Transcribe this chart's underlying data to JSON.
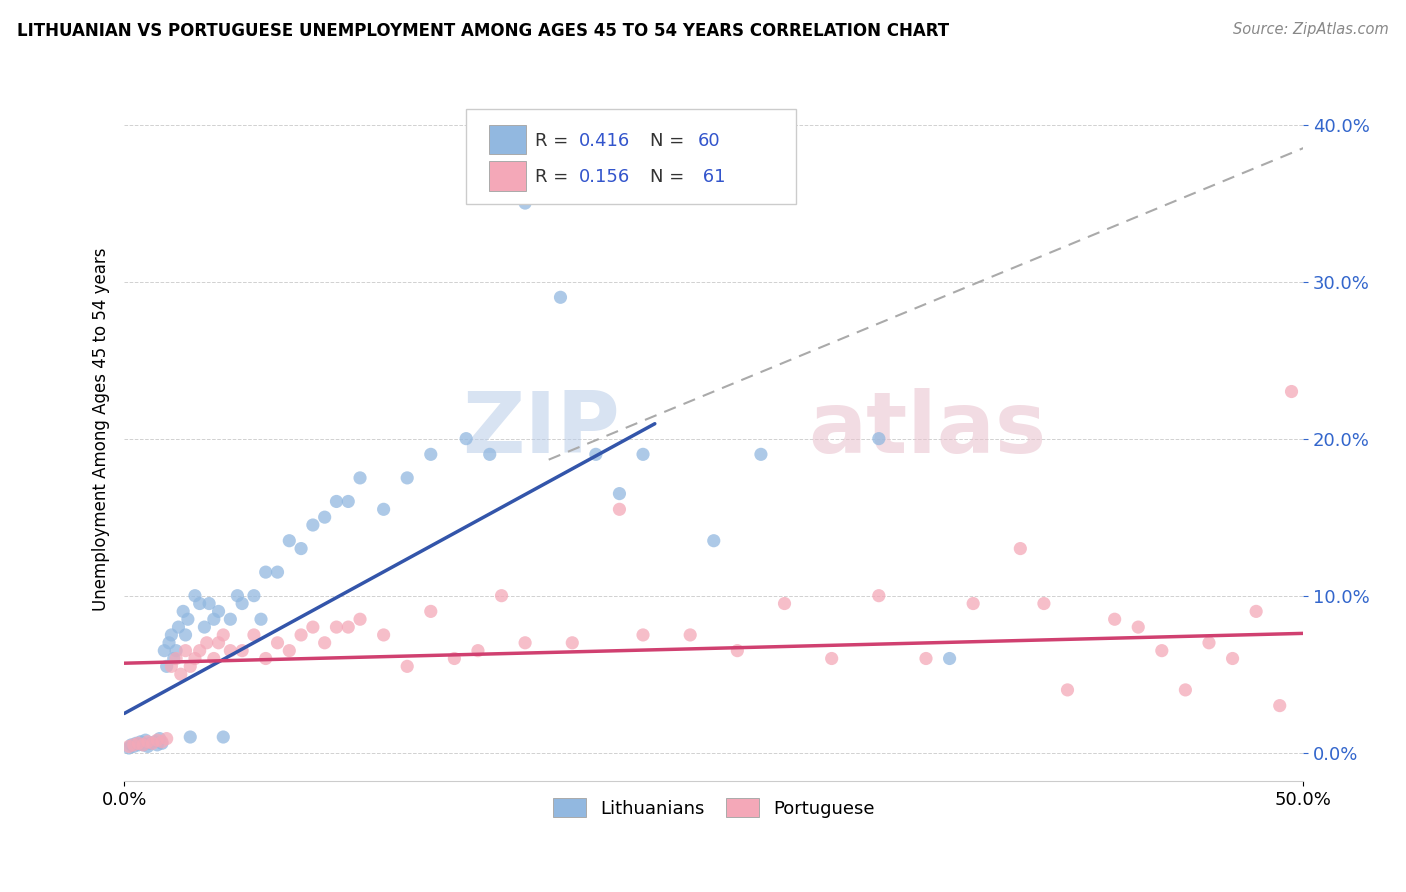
{
  "title": "LITHUANIAN VS PORTUGUESE UNEMPLOYMENT AMONG AGES 45 TO 54 YEARS CORRELATION CHART",
  "source": "Source: ZipAtlas.com",
  "ylabel": "Unemployment Among Ages 45 to 54 years",
  "yticks": [
    "0.0%",
    "10.0%",
    "20.0%",
    "30.0%",
    "40.0%"
  ],
  "ytick_vals": [
    0.0,
    0.1,
    0.2,
    0.3,
    0.4
  ],
  "xrange": [
    0.0,
    0.5
  ],
  "yrange": [
    -0.018,
    0.43
  ],
  "lit_color": "#92b8e0",
  "por_color": "#f4a8b8",
  "lit_line_color": "#3355aa",
  "por_line_color": "#d04070",
  "dashed_line_color": "#aaaaaa",
  "watermark_zip": "ZIP",
  "watermark_atlas": "atlas",
  "lit_R": "0.416",
  "lit_N": "60",
  "por_R": "0.156",
  "por_N": "61",
  "lit_slope": 0.82,
  "lit_intercept": 0.025,
  "lit_xstart": 0.0,
  "lit_xend": 0.225,
  "por_slope": 0.038,
  "por_intercept": 0.057,
  "por_xstart": 0.0,
  "por_xend": 0.5,
  "dash_slope": 0.62,
  "dash_intercept": 0.075,
  "dash_xstart": 0.18,
  "dash_xend": 0.5,
  "lit_scatter_x": [
    0.002,
    0.003,
    0.004,
    0.005,
    0.006,
    0.007,
    0.008,
    0.009,
    0.01,
    0.011,
    0.013,
    0.014,
    0.015,
    0.016,
    0.017,
    0.018,
    0.019,
    0.02,
    0.021,
    0.022,
    0.023,
    0.025,
    0.026,
    0.027,
    0.028,
    0.03,
    0.032,
    0.034,
    0.036,
    0.038,
    0.04,
    0.042,
    0.045,
    0.048,
    0.05,
    0.055,
    0.058,
    0.06,
    0.065,
    0.07,
    0.075,
    0.08,
    0.085,
    0.09,
    0.095,
    0.1,
    0.11,
    0.12,
    0.13,
    0.145,
    0.155,
    0.17,
    0.185,
    0.2,
    0.21,
    0.22,
    0.25,
    0.27,
    0.32,
    0.35
  ],
  "lit_scatter_y": [
    0.003,
    0.005,
    0.004,
    0.006,
    0.005,
    0.007,
    0.005,
    0.008,
    0.004,
    0.006,
    0.007,
    0.005,
    0.009,
    0.006,
    0.065,
    0.055,
    0.07,
    0.075,
    0.06,
    0.065,
    0.08,
    0.09,
    0.075,
    0.085,
    0.01,
    0.1,
    0.095,
    0.08,
    0.095,
    0.085,
    0.09,
    0.01,
    0.085,
    0.1,
    0.095,
    0.1,
    0.085,
    0.115,
    0.115,
    0.135,
    0.13,
    0.145,
    0.15,
    0.16,
    0.16,
    0.175,
    0.155,
    0.175,
    0.19,
    0.2,
    0.19,
    0.35,
    0.29,
    0.19,
    0.165,
    0.19,
    0.135,
    0.19,
    0.2,
    0.06
  ],
  "por_scatter_x": [
    0.002,
    0.004,
    0.006,
    0.008,
    0.01,
    0.012,
    0.014,
    0.016,
    0.018,
    0.02,
    0.022,
    0.024,
    0.026,
    0.028,
    0.03,
    0.032,
    0.035,
    0.038,
    0.04,
    0.042,
    0.045,
    0.05,
    0.055,
    0.06,
    0.065,
    0.07,
    0.075,
    0.08,
    0.085,
    0.09,
    0.095,
    0.1,
    0.11,
    0.12,
    0.13,
    0.14,
    0.15,
    0.16,
    0.17,
    0.19,
    0.21,
    0.22,
    0.24,
    0.26,
    0.28,
    0.3,
    0.32,
    0.34,
    0.36,
    0.38,
    0.39,
    0.4,
    0.42,
    0.43,
    0.44,
    0.45,
    0.46,
    0.47,
    0.48,
    0.49,
    0.495
  ],
  "por_scatter_y": [
    0.004,
    0.005,
    0.006,
    0.005,
    0.007,
    0.006,
    0.008,
    0.007,
    0.009,
    0.055,
    0.06,
    0.05,
    0.065,
    0.055,
    0.06,
    0.065,
    0.07,
    0.06,
    0.07,
    0.075,
    0.065,
    0.065,
    0.075,
    0.06,
    0.07,
    0.065,
    0.075,
    0.08,
    0.07,
    0.08,
    0.08,
    0.085,
    0.075,
    0.055,
    0.09,
    0.06,
    0.065,
    0.1,
    0.07,
    0.07,
    0.155,
    0.075,
    0.075,
    0.065,
    0.095,
    0.06,
    0.1,
    0.06,
    0.095,
    0.13,
    0.095,
    0.04,
    0.085,
    0.08,
    0.065,
    0.04,
    0.07,
    0.06,
    0.09,
    0.03,
    0.23
  ]
}
